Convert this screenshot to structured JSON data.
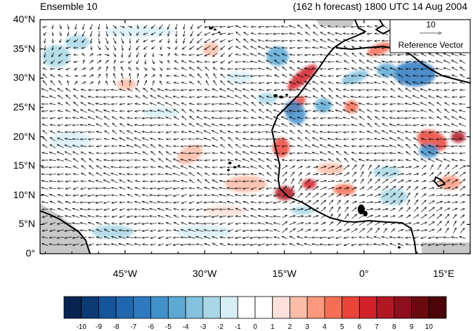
{
  "header": {
    "left": "Ensemble 10",
    "right": "(162 h forecast) 1800 UTC 14 Aug 2004"
  },
  "reference_vector": {
    "magnitude": "10",
    "label": "Reference Vector"
  },
  "map": {
    "lon_range": [
      -61,
      20
    ],
    "lat_range": [
      0,
      40
    ],
    "y_ticks": [
      "0°",
      "5°N",
      "10°N",
      "15°N",
      "20°N",
      "25°N",
      "30°N",
      "35°N",
      "40°N"
    ],
    "x_ticks": [
      "45°W",
      "30°W",
      "15°W",
      "0°",
      "15°E"
    ]
  },
  "colorbar": {
    "labels": [
      "-10",
      "-9",
      "-8",
      "-7",
      "-6",
      "-5",
      "-4",
      "-3",
      "-2",
      "-1",
      "0",
      "1",
      "2",
      "3",
      "4",
      "5",
      "6",
      "7",
      "8",
      "9",
      "10"
    ],
    "colors": [
      "#08234f",
      "#0c3a73",
      "#15569b",
      "#2167b0",
      "#2e7ac0",
      "#4291cb",
      "#5ca9d3",
      "#83c1dd",
      "#a9d7e6",
      "#d7eef5",
      "#ffffff",
      "#ffffff",
      "#fde0db",
      "#fbbda9",
      "#f9987c",
      "#f46f55",
      "#e9443a",
      "#d22129",
      "#b11824",
      "#8d0f1d",
      "#6a0a0f",
      "#4b0508"
    ]
  }
}
